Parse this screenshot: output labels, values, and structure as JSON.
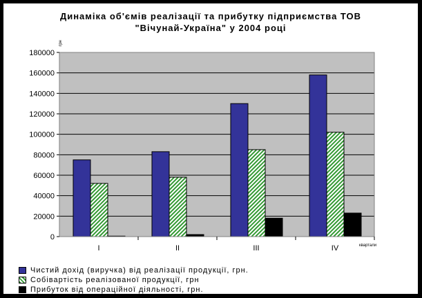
{
  "chart_data": {
    "type": "bar",
    "title": [
      "Динаміка об'ємів реалізації та прибутку підприємства ТОВ",
      "\"Вічунай-Україна\" у 2004 році"
    ],
    "ylabel": "грн",
    "xlabel": "квартали",
    "ylim": [
      0,
      180000
    ],
    "yticks": [
      0,
      20000,
      40000,
      60000,
      80000,
      100000,
      120000,
      140000,
      160000,
      180000
    ],
    "categories": [
      "I",
      "II",
      "III",
      "IV"
    ],
    "series": [
      {
        "name": "Чистий дохід (виручка) від реалізації продукції, грн.",
        "values": [
          75000,
          83000,
          130000,
          158000
        ],
        "color": "#333399",
        "pattern": "solid"
      },
      {
        "name": "Собівартість реалізованої продукції, грн",
        "values": [
          52000,
          58000,
          85000,
          102000
        ],
        "color": "#339933",
        "pattern": "diagonal"
      },
      {
        "name": "Прибуток від операційної діяльності, грн.",
        "values": [
          500,
          2000,
          18000,
          23000
        ],
        "color": "#000000",
        "pattern": "solid"
      }
    ],
    "grid": true,
    "plot_background": "#c0c0c0",
    "legend_position": "bottom-left"
  }
}
